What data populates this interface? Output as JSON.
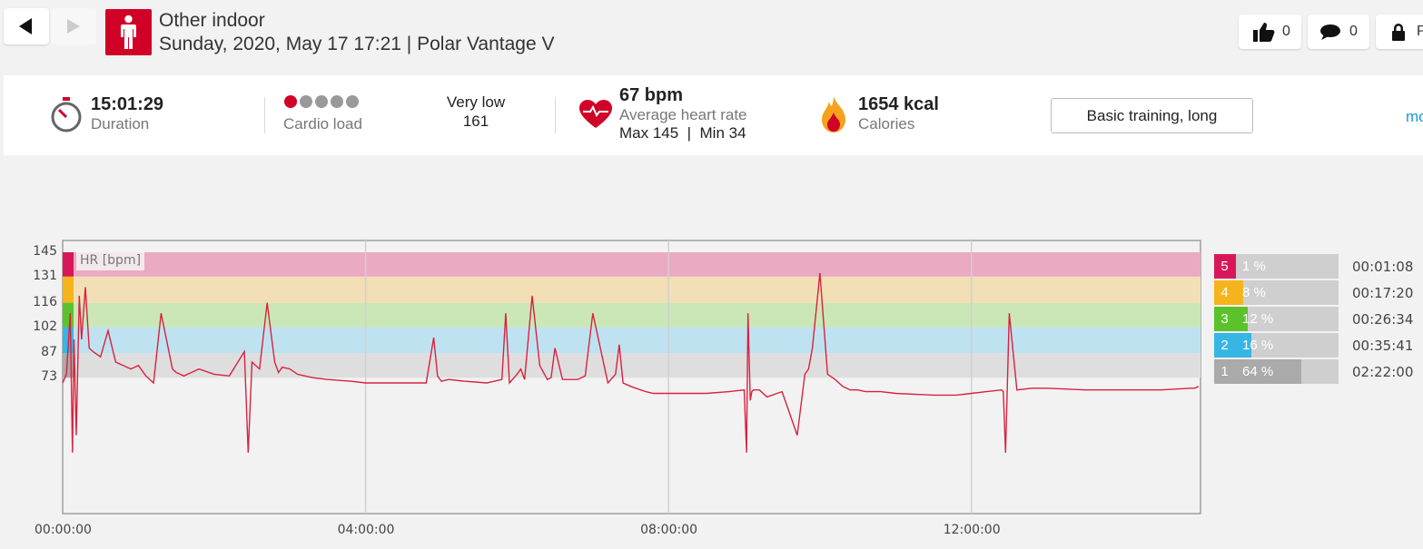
{
  "header": {
    "sport": "Other indoor",
    "subtitle": "Sunday, 2020, May 17 17:21 | Polar Vantage V",
    "likes": "0",
    "comments": "0",
    "privacy_label": "P",
    "sport_icon": "person-icon"
  },
  "summary": {
    "duration_value": "15:01:29",
    "duration_label": "Duration",
    "cardio_label": "Cardio load",
    "cardio_dots_active": 1,
    "cardio_dots_total": 5,
    "cardio_level": "Very low",
    "cardio_value": "161",
    "hr_value": "67 bpm",
    "hr_label": "Average heart rate",
    "hr_maxmin": "Max 145  |  Min 34",
    "calories_value": "1654 kcal",
    "calories_label": "Calories",
    "training_benefit": "Basic training, long",
    "more_link": "mo"
  },
  "colors": {
    "accent": "#d10027",
    "hr_line": "#d8223f",
    "link": "#1a9ad6"
  },
  "chart_data": {
    "type": "line",
    "title": "",
    "ylabel": "HR [bpm]",
    "xlabel": "",
    "y_ticks": [
      "145",
      "131",
      "116",
      "102",
      "87",
      "73"
    ],
    "x_ticks": [
      "00:00:00",
      "04:00:00",
      "08:00:00",
      "12:00:00"
    ],
    "ylim": [
      20,
      145
    ],
    "xlim_hours": [
      0,
      15.025
    ],
    "zones": [
      {
        "zone": "5",
        "low": 131,
        "high": 145,
        "color": "#eaaac4",
        "marker": "#d8175a"
      },
      {
        "zone": "4",
        "low": 116,
        "high": 131,
        "color": "#f3dfb5",
        "marker": "#f5b41c"
      },
      {
        "zone": "3",
        "low": 102,
        "high": 116,
        "color": "#cbe7b8",
        "marker": "#5cc22c"
      },
      {
        "zone": "2",
        "low": 87,
        "high": 102,
        "color": "#bfe2f0",
        "marker": "#36b6e5"
      },
      {
        "zone": "1",
        "low": 73,
        "high": 87,
        "color": "#dedede",
        "marker": "#aaaaaa"
      }
    ],
    "series": [
      {
        "values_x_hours": [
          0.0,
          0.05,
          0.1,
          0.13,
          0.15,
          0.18,
          0.22,
          0.25,
          0.3,
          0.35,
          0.4,
          0.5,
          0.6,
          0.7,
          0.8,
          0.9,
          1.0,
          1.1,
          1.2,
          1.3,
          1.45,
          1.5,
          1.55,
          1.6,
          1.7,
          1.8,
          2.0,
          2.2,
          2.4,
          2.45,
          2.5,
          2.6,
          2.7,
          2.8,
          2.85,
          2.9,
          3.0,
          3.1,
          3.2,
          3.3,
          3.5,
          3.8,
          4.0,
          4.2,
          4.5,
          4.8,
          4.9,
          4.95,
          5.0,
          5.1,
          5.3,
          5.6,
          5.8,
          5.85,
          5.9,
          6.0,
          6.05,
          6.1,
          6.2,
          6.3,
          6.4,
          6.45,
          6.5,
          6.6,
          6.8,
          6.9,
          7.0,
          7.2,
          7.3,
          7.35,
          7.4,
          7.5,
          7.7,
          7.8,
          7.9,
          8.0,
          8.2,
          8.5,
          8.8,
          9.0,
          9.03,
          9.05,
          9.08,
          9.1,
          9.12,
          9.15,
          9.2,
          9.3,
          9.5,
          9.7,
          9.8,
          9.85,
          9.9,
          10.0,
          10.1,
          10.2,
          10.3,
          10.4,
          10.45,
          10.5,
          10.6,
          10.7,
          10.8,
          11.0,
          11.5,
          11.8,
          12.0,
          12.2,
          12.4,
          12.42,
          12.45,
          12.5,
          12.6,
          12.8,
          13.0,
          13.5,
          14.0,
          14.5,
          14.9,
          14.95,
          15.0
        ],
        "values_y": [
          70,
          75,
          110,
          30,
          95,
          40,
          120,
          95,
          125,
          90,
          88,
          85,
          100,
          82,
          80,
          78,
          80,
          74,
          70,
          110,
          78,
          76,
          75,
          74,
          76,
          78,
          75,
          74,
          88,
          30,
          82,
          78,
          116,
          82,
          76,
          79,
          78,
          75,
          74,
          73,
          72,
          71,
          70,
          70,
          70,
          70,
          96,
          74,
          71,
          72,
          71,
          70,
          72,
          110,
          70,
          75,
          78,
          72,
          120,
          80,
          72,
          73,
          90,
          72,
          72,
          74,
          110,
          70,
          75,
          92,
          70,
          68,
          65,
          64,
          64,
          64,
          64,
          64,
          65,
          66,
          30,
          110,
          60,
          65,
          66,
          66,
          66,
          62,
          65,
          40,
          75,
          78,
          90,
          133,
          75,
          72,
          68,
          66,
          66,
          66,
          65,
          65,
          65,
          64,
          63,
          63,
          64,
          65,
          66,
          65,
          30,
          110,
          66,
          67,
          67,
          66,
          66,
          66,
          67,
          67,
          68,
          80,
          70
        ]
      }
    ]
  },
  "zone_legend": [
    {
      "zone": "5",
      "pct_label": "1 %",
      "pct": 1,
      "time": "00:01:08",
      "color": "#d8175a"
    },
    {
      "zone": "4",
      "pct_label": "8 %",
      "pct": 8,
      "time": "00:17:20",
      "color": "#f5b41c"
    },
    {
      "zone": "3",
      "pct_label": "12 %",
      "pct": 12,
      "time": "00:26:34",
      "color": "#5cc22c"
    },
    {
      "zone": "2",
      "pct_label": "16 %",
      "pct": 16,
      "time": "00:35:41",
      "color": "#36b6e5"
    },
    {
      "zone": "1",
      "pct_label": "64 %",
      "pct": 64,
      "time": "02:22:00",
      "color": "#aaaaaa"
    }
  ]
}
